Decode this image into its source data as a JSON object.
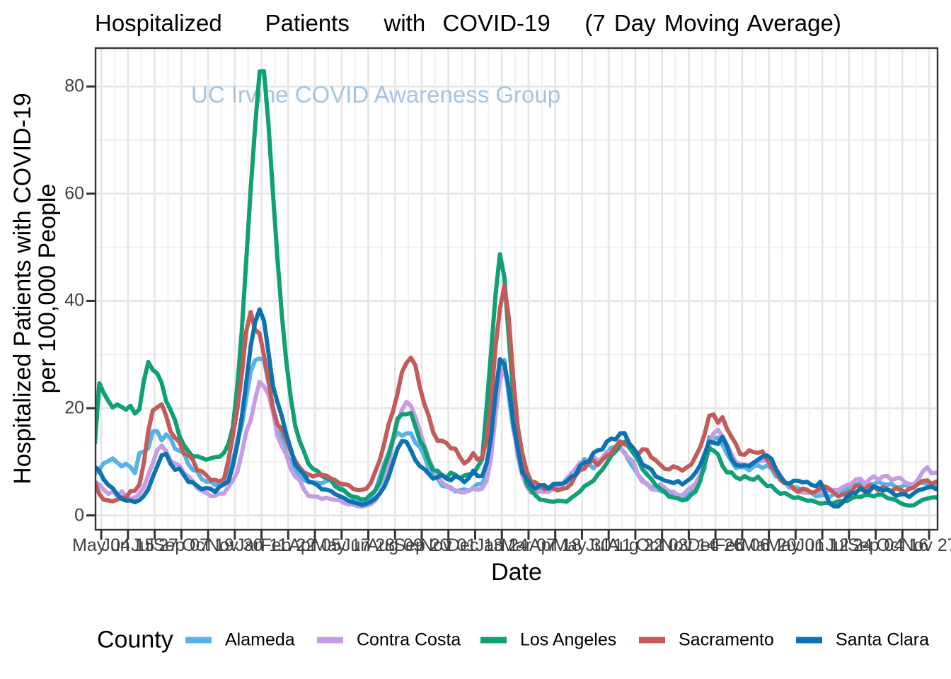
{
  "title": "Hospitalized     Patients    with  COVID-19    (7 Day Moving Average)",
  "watermark": "UC Irvine COVID Awareness Group",
  "axes": {
    "y_title_line1": "Hospitalized Patients with COVID-19",
    "y_title_line2": "per 100,000 People",
    "x_title": "Date",
    "y_tick_labels": [
      "0",
      "20",
      "40",
      "60",
      "80"
    ],
    "x_tick_labels": [
      "May 04",
      "Jun 15",
      "Jul 27",
      "Sep 07",
      "Oct 19",
      "Nov 30",
      "Jan 11",
      "Feb 22",
      "Apr 05",
      "May 17",
      "Jun 28",
      "Aug 09",
      "Sep 20",
      "Nov 01",
      "Dec 13",
      "Jan 24",
      "Mar 07",
      "Apr 18",
      "May 30",
      "Jul 11",
      "Aug 22",
      "Oct 03",
      "Nov 14",
      "Dec 26",
      "Feb 06",
      "Mar 20",
      "May 01",
      "Jun 12",
      "Jul 24",
      "Sep 04",
      "Oct 16",
      "Nov 27"
    ]
  },
  "legend": {
    "title": "County",
    "items": [
      {
        "label": "Alameda",
        "color": "#57B3E6"
      },
      {
        "label": "Contra Costa",
        "color": "#C59DE3"
      },
      {
        "label": "Los Angeles",
        "color": "#0FA076"
      },
      {
        "label": "Sacramento",
        "color": "#C45B5B"
      },
      {
        "label": "Santa Clara",
        "color": "#0C72B2"
      }
    ]
  },
  "chart_data": {
    "type": "line",
    "title": "Hospitalized Patients with COVID-19 (7 Day Moving Average)",
    "xlabel": "Date",
    "ylabel": "Hospitalized Patients with COVID-19 per 100,000 People",
    "legend_title": "County",
    "legend_position": "bottom",
    "grid": true,
    "x_start_date": "2020-04-24",
    "x_step_days": 7,
    "x_end_date": "2023-12-10",
    "x_tick_dates": [
      "2020-05-04",
      "interval 42 days",
      "2023-11-27"
    ],
    "ylim": [
      0,
      83
    ],
    "y_ticks": [
      0,
      20,
      40,
      60,
      80
    ],
    "series": [
      {
        "name": "Alameda",
        "color": "#57B3E6",
        "values": [
          7.84,
          8.55,
          9.73,
          10.12,
          10.62,
          9.86,
          9.16,
          9.6,
          9.03,
          7.87,
          11.62,
          11.88,
          12.54,
          15.65,
          15.7,
          13.98,
          15.1,
          14.42,
          12.42,
          12.04,
          11.7,
          9.54,
          8.5,
          8.21,
          6.75,
          6.3,
          6.31,
          5.67,
          5.82,
          6.8,
          7.86,
          10.19,
          13.85,
          16.79,
          21.88,
          26.8,
          28.96,
          29.24,
          28.91,
          24.89,
          20.25,
          16.96,
          13.99,
          11.59,
          9.88,
          8.22,
          7.23,
          6.6,
          6.2,
          6.16,
          6.09,
          5.99,
          6.37,
          6.63,
          6.11,
          5.44,
          4.62,
          3.8,
          3.31,
          2.78,
          2.43,
          2.75,
          3.39,
          4.62,
          7.14,
          9.64,
          11.59,
          14.16,
          15.42,
          14.86,
          15.27,
          15.32,
          13.53,
          12.77,
          11.16,
          8.65,
          7.86,
          6.91,
          5.54,
          5.36,
          5.2,
          4.49,
          4.68,
          4.87,
          4.57,
          5.19,
          5.84,
          5.86,
          7.95,
          13.4,
          20.05,
          27.94,
          28.99,
          22.09,
          16.16,
          12.2,
          8.19,
          6.56,
          5.95,
          4.81,
          4.71,
          5.48,
          4.85,
          5.26,
          5.85,
          5.75,
          6.22,
          7.86,
          8.31,
          9.05,
          10.52,
          9.6,
          8.79,
          9.69,
          10.6,
          11.6,
          12.6,
          12.75,
          12.42,
          11.8,
          10.15,
          8.91,
          7.65,
          6.58,
          5.79,
          5.27,
          4.84,
          4.6,
          4.37,
          3.95,
          3.83,
          3.5,
          3.37,
          3.94,
          4.65,
          5.51,
          7.11,
          8.76,
          14.6,
          14.32,
          14.54,
          13.19,
          11.49,
          10.17,
          8.84,
          9.02,
          8.96,
          8.4,
          9.14,
          9.32,
          8.85,
          9.31,
          8.76,
          7.28,
          7.04,
          6.23,
          5.18,
          5.28,
          5.12,
          4.42,
          4.35,
          4.21,
          3.56,
          3.69,
          3.83,
          3.41,
          3.99,
          4.64,
          4.39,
          4.91,
          5.83,
          5.72,
          6.06,
          6.06,
          5.84,
          5.84,
          6.29,
          5.84,
          5.73,
          5.89,
          5.25,
          5.22,
          5.76,
          5.29,
          5.28,
          6.26,
          6.01,
          5.86,
          5.93,
          5.64,
          5.62
        ]
      },
      {
        "name": "Contra Costa",
        "color": "#C59DE3",
        "values": [
          6.27,
          5.72,
          4.79,
          4.02,
          4.44,
          3.69,
          4.5,
          3.54,
          3.06,
          3.34,
          4.02,
          5.28,
          7.57,
          9.74,
          12.17,
          13.0,
          11.98,
          10.23,
          9.64,
          9.33,
          7.9,
          7.24,
          6.41,
          5.06,
          4.62,
          4.21,
          3.63,
          3.64,
          4.09,
          4.09,
          5.35,
          6.52,
          8.08,
          11.55,
          15.59,
          17.73,
          21.67,
          24.89,
          24.03,
          22.58,
          19.46,
          14.85,
          12.89,
          11.34,
          8.72,
          7.24,
          6.58,
          4.77,
          3.66,
          3.53,
          3.51,
          3.07,
          3.3,
          3.03,
          2.89,
          2.81,
          2.31,
          2.03,
          2.03,
          1.75,
          1.62,
          1.86,
          2.12,
          2.76,
          4.21,
          6.01,
          9.42,
          14.14,
          17.46,
          19.67,
          21.16,
          20.45,
          18.33,
          15.82,
          13.04,
          10.59,
          8.75,
          7.26,
          6.16,
          5.53,
          4.95,
          4.7,
          4.38,
          4.28,
          4.66,
          4.99,
          4.77,
          4.99,
          6.45,
          10.75,
          18.53,
          25.29,
          27.41,
          23.3,
          17.0,
          11.08,
          7.53,
          5.43,
          4.22,
          4.27,
          4.49,
          4.36,
          4.44,
          4.91,
          4.86,
          5.73,
          6.95,
          7.56,
          8.75,
          9.84,
          9.5,
          10.3,
          11.0,
          10.08,
          10.75,
          11.89,
          11.32,
          12.03,
          12.8,
          11.55,
          10.69,
          10.07,
          7.57,
          6.25,
          6.0,
          4.89,
          4.82,
          5.82,
          5.13,
          4.45,
          4.36,
          3.79,
          3.75,
          4.62,
          5.25,
          5.92,
          7.65,
          9.16,
          12.73,
          15.32,
          15.97,
          14.73,
          13.22,
          11.48,
          9.92,
          9.59,
          9.42,
          9.38,
          9.88,
          10.03,
          10.23,
          10.22,
          9.09,
          8.18,
          7.28,
          6.18,
          5.56,
          4.91,
          4.41,
          4.3,
          4.25,
          4.19,
          4.42,
          4.51,
          4.37,
          4.59,
          4.74,
          4.71,
          5.25,
          5.67,
          5.94,
          6.7,
          6.86,
          5.88,
          6.7,
          7.3,
          6.62,
          7.25,
          7.36,
          6.61,
          6.9,
          6.99,
          6.15,
          5.85,
          5.83,
          6.74,
          8.18,
          8.94,
          7.84,
          7.96,
          7.9
        ]
      },
      {
        "name": "Los Angeles",
        "color": "#0FA076",
        "values": [
          13.49,
          24.63,
          22.81,
          21.36,
          20.12,
          20.7,
          20.22,
          19.73,
          20.45,
          19.0,
          19.77,
          25.09,
          28.61,
          27.14,
          26.49,
          24.7,
          21.29,
          19.71,
          17.78,
          14.83,
          13.11,
          11.98,
          10.97,
          11.03,
          10.73,
          10.4,
          10.63,
          10.88,
          10.94,
          11.63,
          13.3,
          16.46,
          24.07,
          34.42,
          47.57,
          60.88,
          72.57,
          82.79,
          82.83,
          73.01,
          60.15,
          48.16,
          37.41,
          28.67,
          22.01,
          16.74,
          13.85,
          11.85,
          9.63,
          8.68,
          8.31,
          7.34,
          6.94,
          6.64,
          5.41,
          4.89,
          4.66,
          3.88,
          3.45,
          3.35,
          2.91,
          3.09,
          3.91,
          4.64,
          6.16,
          8.95,
          11.34,
          14.34,
          18.03,
          18.84,
          18.87,
          19.13,
          16.64,
          13.96,
          12.71,
          10.17,
          8.42,
          8.32,
          7.4,
          7.03,
          7.97,
          7.57,
          6.87,
          7.42,
          7.66,
          7.77,
          9.02,
          10.46,
          20.25,
          30.29,
          40.97,
          48.7,
          44.42,
          33.05,
          22.38,
          15.57,
          9.91,
          5.88,
          4.7,
          3.73,
          2.96,
          2.83,
          2.65,
          2.53,
          2.73,
          2.67,
          2.59,
          3.24,
          3.84,
          4.47,
          5.45,
          5.92,
          6.47,
          7.63,
          8.52,
          9.72,
          11.12,
          11.92,
          13.16,
          13.76,
          12.7,
          11.59,
          10.41,
          8.67,
          7.67,
          6.82,
          5.63,
          5.0,
          4.4,
          3.51,
          3.32,
          3.18,
          2.79,
          2.98,
          3.88,
          4.47,
          6.41,
          9.77,
          12.5,
          12.09,
          11.39,
          9.23,
          8.04,
          8.04,
          7.1,
          6.76,
          7.34,
          6.85,
          6.66,
          7.21,
          6.3,
          5.49,
          5.55,
          4.65,
          4.02,
          4.19,
          3.72,
          3.26,
          3.38,
          3.08,
          2.74,
          2.8,
          2.49,
          2.2,
          2.35,
          2.31,
          2.29,
          2.62,
          2.72,
          2.68,
          3.21,
          3.48,
          3.43,
          3.77,
          3.78,
          3.56,
          3.89,
          3.84,
          3.26,
          3.08,
          2.83,
          2.31,
          1.95,
          1.83,
          1.89,
          2.42,
          2.92,
          3.14,
          3.32,
          3.38,
          3.22
        ]
      },
      {
        "name": "Sacramento",
        "color": "#C45B5B",
        "values": [
          6.13,
          3.97,
          2.92,
          2.79,
          2.62,
          2.93,
          3.37,
          3.28,
          4.52,
          4.59,
          5.72,
          9.82,
          15.74,
          19.55,
          20.15,
          20.72,
          18.58,
          15.69,
          14.48,
          13.67,
          11.48,
          11.31,
          10.4,
          8.39,
          8.27,
          7.52,
          6.56,
          6.62,
          6.34,
          6.74,
          10.33,
          14.88,
          19.82,
          26.21,
          34.33,
          37.93,
          34.59,
          33.92,
          29.81,
          25.1,
          19.96,
          16.98,
          16.12,
          14.01,
          11.94,
          10.2,
          8.93,
          8.01,
          7.67,
          7.26,
          7.54,
          7.58,
          7.42,
          6.9,
          6.55,
          5.98,
          5.82,
          5.65,
          4.97,
          4.71,
          4.78,
          4.99,
          6.05,
          8.2,
          10.27,
          13.4,
          17.03,
          19.48,
          22.76,
          26.73,
          28.43,
          29.42,
          28.0,
          23.95,
          20.83,
          18.57,
          15.48,
          13.92,
          13.94,
          13.48,
          12.51,
          12.42,
          10.88,
          9.68,
          10.3,
          11.59,
          10.41,
          10.82,
          14.05,
          20.97,
          31.22,
          38.47,
          42.82,
          36.79,
          25.42,
          16.59,
          11.63,
          8.27,
          6.34,
          6.16,
          5.54,
          4.91,
          5.2,
          5.08,
          4.64,
          4.96,
          5.1,
          5.84,
          7.44,
          8.44,
          8.73,
          9.89,
          10.25,
          9.41,
          10.33,
          11.14,
          11.53,
          12.84,
          13.81,
          13.23,
          13.37,
          12.5,
          11.33,
          12.32,
          12.28,
          10.83,
          10.29,
          9.46,
          8.69,
          8.59,
          9.15,
          8.85,
          8.35,
          8.98,
          9.49,
          11.08,
          12.73,
          15.18,
          18.57,
          18.81,
          17.26,
          18.31,
          16.19,
          14.7,
          13.36,
          11.4,
          11.32,
          12.14,
          11.8,
          11.69,
          11.94,
          10.48,
          9.08,
          8.15,
          6.6,
          5.99,
          5.98,
          4.92,
          4.39,
          5.01,
          4.79,
          4.21,
          4.47,
          5.11,
          5.44,
          4.99,
          4.21,
          3.58,
          3.88,
          4.16,
          4.54,
          5.59,
          5.41,
          4.92,
          5.56,
          5.35,
          4.68,
          5.26,
          4.9,
          4.53,
          5.13,
          4.79,
          4.38,
          4.98,
          5.19,
          5.91,
          6.45,
          6.53,
          5.87,
          6.3,
          6.26
        ]
      },
      {
        "name": "Santa Clara",
        "color": "#0C72B2",
        "values": [
          9.07,
          8.3,
          6.67,
          5.68,
          5.08,
          3.9,
          3.09,
          2.76,
          2.8,
          2.47,
          2.85,
          3.61,
          4.9,
          7.15,
          9.14,
          11.21,
          11.47,
          9.66,
          8.49,
          8.74,
          7.54,
          6.27,
          6.15,
          5.49,
          4.88,
          5.11,
          4.96,
          4.38,
          5.33,
          5.81,
          6.35,
          9.23,
          13.2,
          18.28,
          24.8,
          31.52,
          36.03,
          38.43,
          36.29,
          30.44,
          24.15,
          21.19,
          18.5,
          15.12,
          12.41,
          9.53,
          8.47,
          7.59,
          6.35,
          6.1,
          5.65,
          4.87,
          4.8,
          4.56,
          3.96,
          3.57,
          3.22,
          2.7,
          2.45,
          2.21,
          1.97,
          2.17,
          2.54,
          3.15,
          4.09,
          5.29,
          7.25,
          9.9,
          12.43,
          13.87,
          13.72,
          12.14,
          10.32,
          9.2,
          8.66,
          7.74,
          6.85,
          7.1,
          7.58,
          6.85,
          6.57,
          7.33,
          6.99,
          6.21,
          6.95,
          8.34,
          7.31,
          7.33,
          9.65,
          14.36,
          22.52,
          29.11,
          28.23,
          23.61,
          17.24,
          12.41,
          8.05,
          6.89,
          5.67,
          5.0,
          5.6,
          5.63,
          4.98,
          5.87,
          5.94,
          5.91,
          6.35,
          7.2,
          7.56,
          9.25,
          9.9,
          10.08,
          11.65,
          12.15,
          12.31,
          13.76,
          14.31,
          14.14,
          15.29,
          15.34,
          13.49,
          12.51,
          11.29,
          9.5,
          9.09,
          8.6,
          7.27,
          6.92,
          6.49,
          6.32,
          6.02,
          6.4,
          5.78,
          6.4,
          7.02,
          8.03,
          9.41,
          11.48,
          13.78,
          13.58,
          13.33,
          14.66,
          12.98,
          10.57,
          9.39,
          9.25,
          9.34,
          9.19,
          9.83,
          10.39,
          10.97,
          11.17,
          10.55,
          8.69,
          7.33,
          6.17,
          5.9,
          6.45,
          6.46,
          6.16,
          6.27,
          5.68,
          5.44,
          6.25,
          4.37,
          2.3,
          1.72,
          1.67,
          2.39,
          3.53,
          4.12,
          4.23,
          5.06,
          4.45,
          4.49,
          5.44,
          5.11,
          4.61,
          4.85,
          4.32,
          3.65,
          3.95,
          3.93,
          3.46,
          4.13,
          4.7,
          4.88,
          5.19,
          5.32,
          4.89,
          5.1
        ]
      }
    ]
  }
}
